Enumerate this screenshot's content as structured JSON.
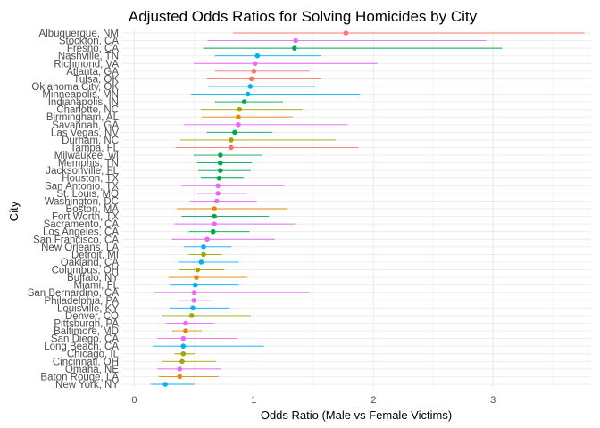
{
  "chart_data": {
    "type": "scatter",
    "title": "Adjusted Odds Ratios for Solving Homicides by City",
    "xlabel": "Odds Ratio (Male vs Female Victims)",
    "ylabel": "City",
    "xlim": [
      -0.1,
      3.82
    ],
    "xticks": [
      0,
      1,
      2,
      3
    ],
    "grid": true,
    "legend": "none",
    "cities": [
      {
        "name": "Albuquerque, NM",
        "or": 1.77,
        "lo": 0.83,
        "hi": 3.76,
        "color": "#F8766D"
      },
      {
        "name": "Stockton, CA",
        "or": 1.35,
        "lo": 0.62,
        "hi": 2.94,
        "color": "#E76BF3"
      },
      {
        "name": "Fresno, CA",
        "or": 1.34,
        "lo": 0.58,
        "hi": 3.07,
        "color": "#00A650"
      },
      {
        "name": "Nashville, TN",
        "or": 1.03,
        "lo": 0.68,
        "hi": 1.56,
        "color": "#00B0F6"
      },
      {
        "name": "Richmond, VA",
        "or": 1.01,
        "lo": 0.5,
        "hi": 2.03,
        "color": "#E76BF3"
      },
      {
        "name": "Atlanta, GA",
        "or": 1.0,
        "lo": 0.68,
        "hi": 1.46,
        "color": "#F8766D"
      },
      {
        "name": "Tulsa, OK",
        "or": 0.98,
        "lo": 0.61,
        "hi": 1.56,
        "color": "#F8766D"
      },
      {
        "name": "Oklahoma City, OK",
        "or": 0.97,
        "lo": 0.62,
        "hi": 1.51,
        "color": "#00B0F6"
      },
      {
        "name": "Minneapolis, MN",
        "or": 0.95,
        "lo": 0.48,
        "hi": 1.88,
        "color": "#00B0F6"
      },
      {
        "name": "Indianapolis, IN",
        "or": 0.92,
        "lo": 0.68,
        "hi": 1.24,
        "color": "#00A650"
      },
      {
        "name": "Charlotte, NC",
        "or": 0.88,
        "lo": 0.56,
        "hi": 1.4,
        "color": "#A3A500"
      },
      {
        "name": "Birmingham, AL",
        "or": 0.87,
        "lo": 0.57,
        "hi": 1.32,
        "color": "#E58700"
      },
      {
        "name": "Savannah, GA",
        "or": 0.87,
        "lo": 0.42,
        "hi": 1.78,
        "color": "#E76BF3"
      },
      {
        "name": "Las Vegas, NV",
        "or": 0.84,
        "lo": 0.61,
        "hi": 1.15,
        "color": "#00A650"
      },
      {
        "name": "Durham, NC",
        "or": 0.81,
        "lo": 0.39,
        "hi": 1.68,
        "color": "#A3A500"
      },
      {
        "name": "Tampa, FL",
        "or": 0.81,
        "lo": 0.35,
        "hi": 1.87,
        "color": "#F8766D"
      },
      {
        "name": "Milwaukee, wI",
        "or": 0.72,
        "lo": 0.5,
        "hi": 1.06,
        "color": "#00A650"
      },
      {
        "name": "Memphis, TN",
        "or": 0.72,
        "lo": 0.53,
        "hi": 0.98,
        "color": "#00A650"
      },
      {
        "name": "Jacksonville, FL",
        "or": 0.72,
        "lo": 0.54,
        "hi": 0.97,
        "color": "#00A650"
      },
      {
        "name": "Houston, TX",
        "or": 0.71,
        "lo": 0.56,
        "hi": 0.91,
        "color": "#00A650"
      },
      {
        "name": "San Antonio, TX",
        "or": 0.7,
        "lo": 0.4,
        "hi": 1.25,
        "color": "#E76BF3"
      },
      {
        "name": "St. Louis, MO",
        "or": 0.7,
        "lo": 0.53,
        "hi": 0.93,
        "color": "#E76BF3"
      },
      {
        "name": "Washington, DC",
        "or": 0.69,
        "lo": 0.47,
        "hi": 1.02,
        "color": "#E76BF3"
      },
      {
        "name": "Boston, MA",
        "or": 0.67,
        "lo": 0.36,
        "hi": 1.28,
        "color": "#E58700"
      },
      {
        "name": "Fort Worth, TX",
        "or": 0.67,
        "lo": 0.4,
        "hi": 1.12,
        "color": "#00A650"
      },
      {
        "name": "Sacramento, CA",
        "or": 0.67,
        "lo": 0.34,
        "hi": 1.34,
        "color": "#E76BF3"
      },
      {
        "name": "Los Angeles, CA",
        "or": 0.66,
        "lo": 0.46,
        "hi": 0.96,
        "color": "#00A650"
      },
      {
        "name": "San Francisco, CA",
        "or": 0.61,
        "lo": 0.32,
        "hi": 1.17,
        "color": "#E76BF3"
      },
      {
        "name": "New Orleans, LA",
        "or": 0.58,
        "lo": 0.42,
        "hi": 0.81,
        "color": "#00B0F6"
      },
      {
        "name": "Detroit, MI",
        "or": 0.58,
        "lo": 0.46,
        "hi": 0.73,
        "color": "#A3A500"
      },
      {
        "name": "Oakland, CA",
        "or": 0.56,
        "lo": 0.37,
        "hi": 0.87,
        "color": "#00B0F6"
      },
      {
        "name": "Columbus, OH",
        "or": 0.53,
        "lo": 0.38,
        "hi": 0.75,
        "color": "#A3A500"
      },
      {
        "name": "Buffalo, NY",
        "or": 0.52,
        "lo": 0.29,
        "hi": 0.94,
        "color": "#E58700"
      },
      {
        "name": "Miami, FL",
        "or": 0.51,
        "lo": 0.3,
        "hi": 0.87,
        "color": "#00B0F6"
      },
      {
        "name": "San Bernardino, CA",
        "or": 0.5,
        "lo": 0.17,
        "hi": 1.46,
        "color": "#E76BF3"
      },
      {
        "name": "Philadelphia, PA",
        "or": 0.5,
        "lo": 0.38,
        "hi": 0.65,
        "color": "#E76BF3"
      },
      {
        "name": "Louisville, KY",
        "or": 0.49,
        "lo": 0.3,
        "hi": 0.79,
        "color": "#00B0F6"
      },
      {
        "name": "Denver, CO",
        "or": 0.48,
        "lo": 0.24,
        "hi": 0.97,
        "color": "#A3A500"
      },
      {
        "name": "Pittsburgh, PA",
        "or": 0.43,
        "lo": 0.27,
        "hi": 0.67,
        "color": "#E76BF3"
      },
      {
        "name": "Baltimore, MD",
        "or": 0.43,
        "lo": 0.32,
        "hi": 0.56,
        "color": "#E58700"
      },
      {
        "name": "San Diego, CA",
        "or": 0.41,
        "lo": 0.2,
        "hi": 0.86,
        "color": "#E76BF3"
      },
      {
        "name": "Long Beach, CA",
        "or": 0.41,
        "lo": 0.16,
        "hi": 1.08,
        "color": "#00B0F6"
      },
      {
        "name": "Chicago, IL",
        "or": 0.41,
        "lo": 0.34,
        "hi": 0.5,
        "color": "#A3A500"
      },
      {
        "name": "Cincinnati, OH",
        "or": 0.4,
        "lo": 0.24,
        "hi": 0.68,
        "color": "#A3A500"
      },
      {
        "name": "Omaha, NE",
        "or": 0.38,
        "lo": 0.2,
        "hi": 0.72,
        "color": "#E76BF3"
      },
      {
        "name": "Baton Rouge, LA",
        "or": 0.38,
        "lo": 0.21,
        "hi": 0.7,
        "color": "#E58700"
      },
      {
        "name": "New York, NY",
        "or": 0.26,
        "lo": 0.14,
        "hi": 0.5,
        "color": "#00B0F6"
      }
    ]
  }
}
